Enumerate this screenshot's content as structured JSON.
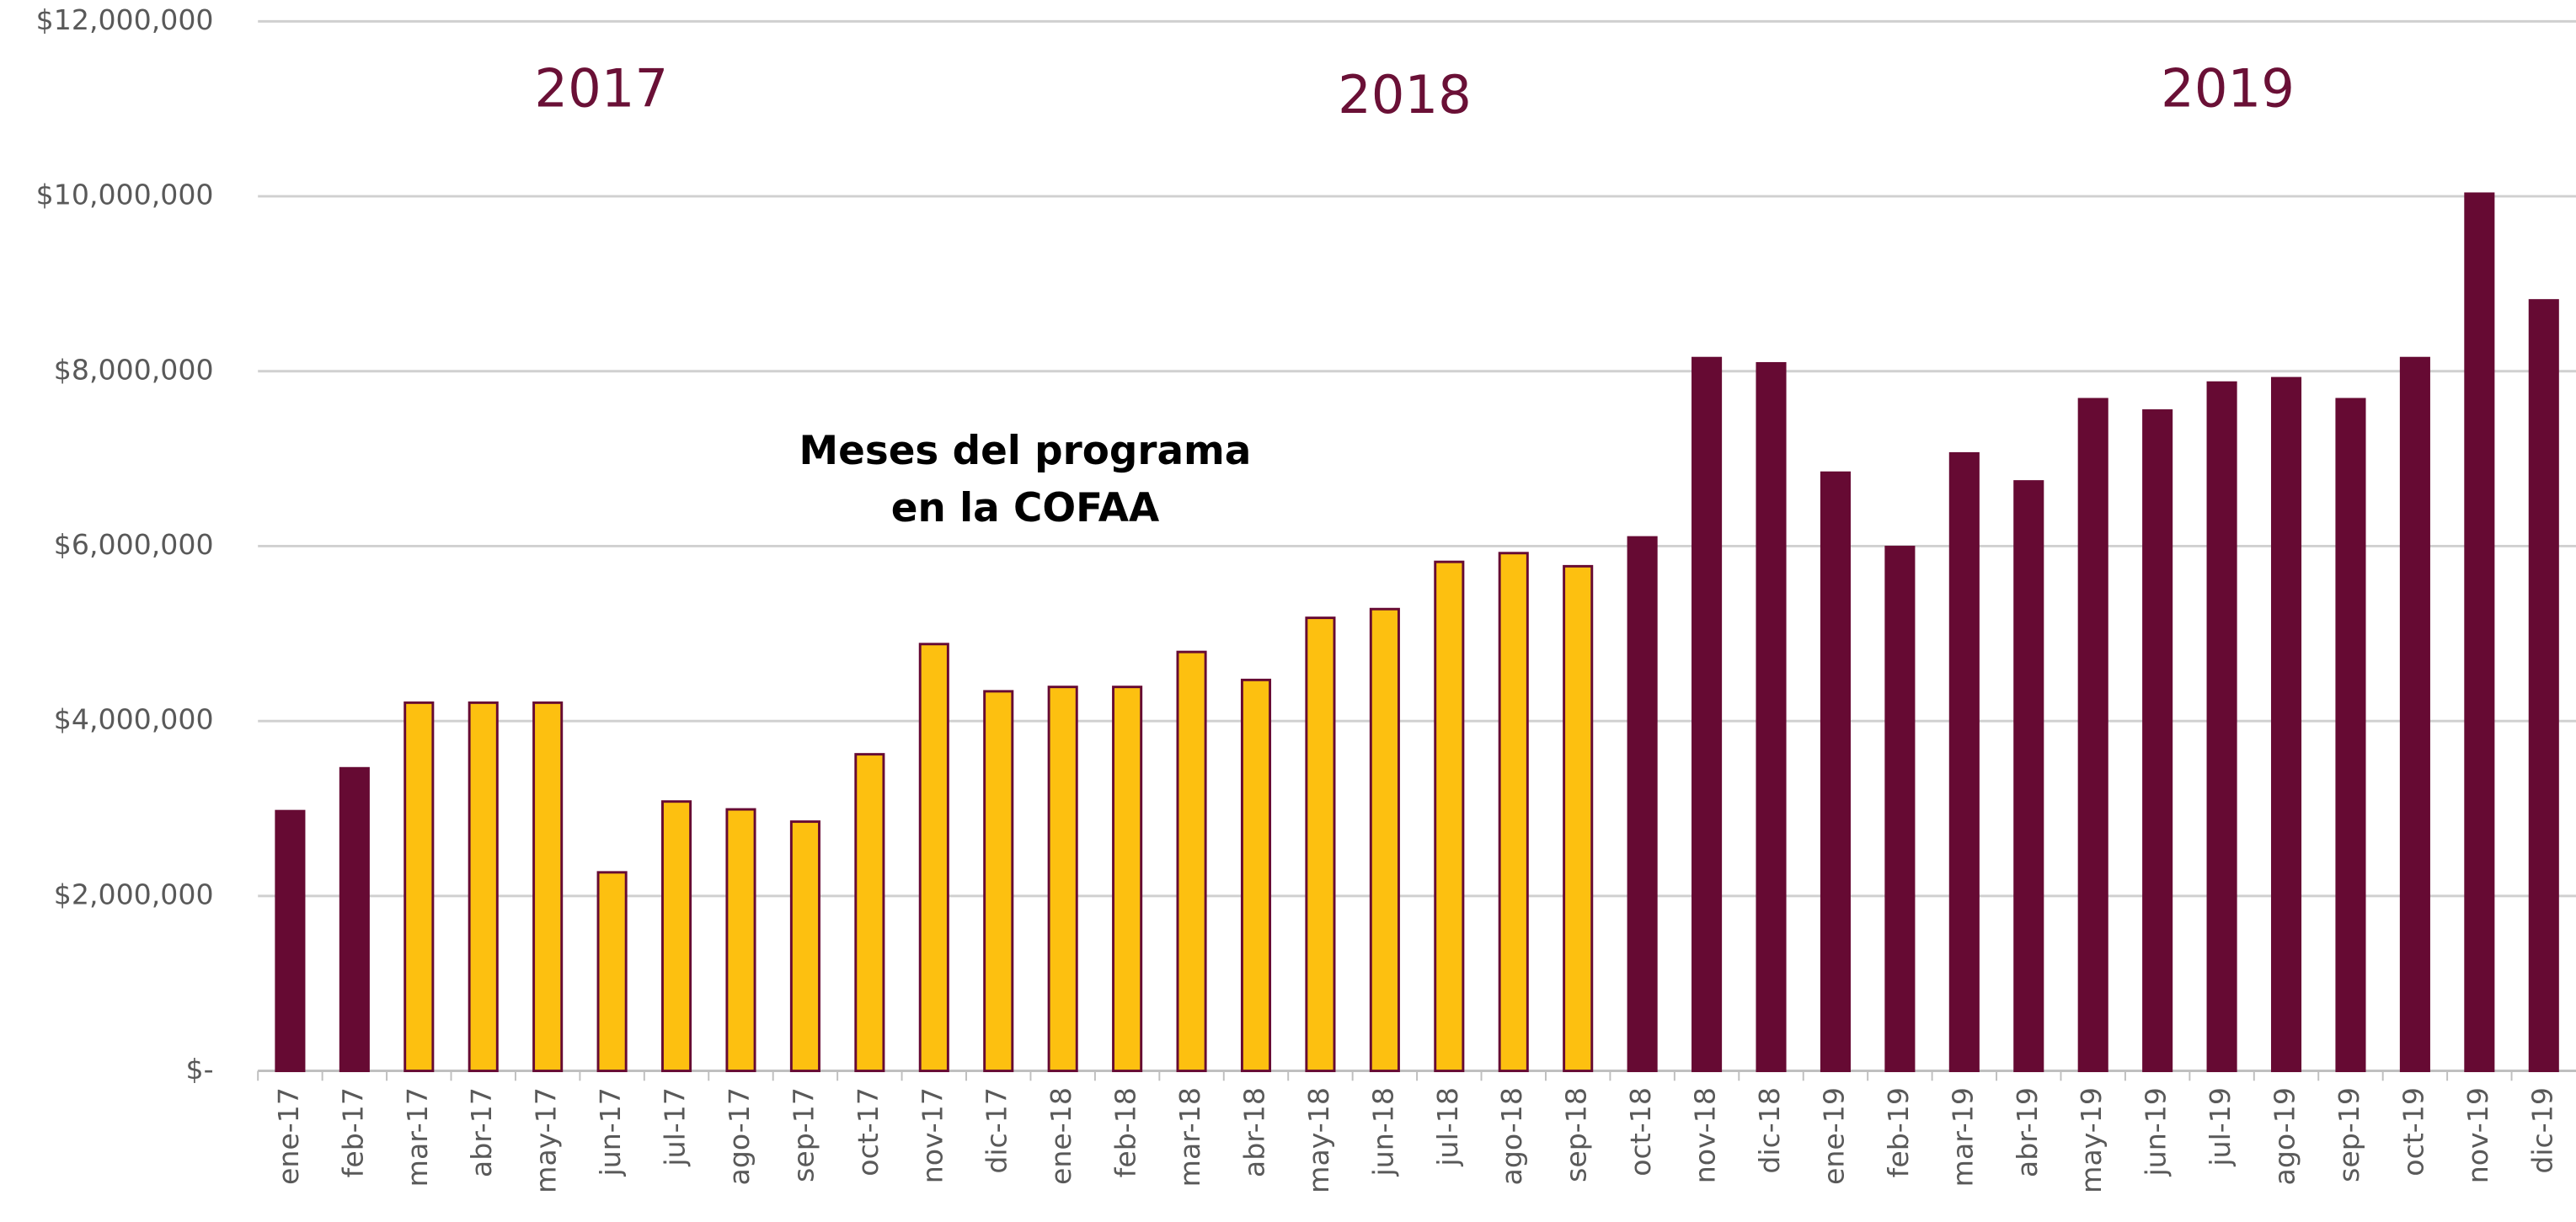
{
  "chart_data": {
    "type": "bar",
    "categories": [
      "ene-17",
      "feb-17",
      "mar-17",
      "abr-17",
      "may-17",
      "jun-17",
      "jul-17",
      "ago-17",
      "sep-17",
      "oct-17",
      "nov-17",
      "dic-17",
      "ene-18",
      "feb-18",
      "mar-18",
      "abr-18",
      "may-18",
      "jun-18",
      "jul-18",
      "ago-18",
      "sep-18",
      "oct-18",
      "nov-18",
      "dic-18",
      "ene-19",
      "feb-19",
      "mar-19",
      "abr-19",
      "may-19",
      "jun-19",
      "jul-19",
      "ago-19",
      "sep-19",
      "oct-19",
      "nov-19",
      "dic-19"
    ],
    "values": [
      2970000,
      3460000,
      4210000,
      4210000,
      4210000,
      2270000,
      3080000,
      2990000,
      2850000,
      3620000,
      4880000,
      4340000,
      4390000,
      4390000,
      4790000,
      4470000,
      5180000,
      5280000,
      5820000,
      5920000,
      5770000,
      6100000,
      8150000,
      8090000,
      6840000,
      5990000,
      7060000,
      6740000,
      7680000,
      7550000,
      7870000,
      7920000,
      7680000,
      8150000,
      10030000,
      8810000
    ],
    "colors": [
      "#660a33",
      "#660a33",
      "#fdc010",
      "#fdc010",
      "#fdc010",
      "#fdc010",
      "#fdc010",
      "#fdc010",
      "#fdc010",
      "#fdc010",
      "#fdc010",
      "#fdc010",
      "#fdc010",
      "#fdc010",
      "#fdc010",
      "#fdc010",
      "#fdc010",
      "#fdc010",
      "#fdc010",
      "#fdc010",
      "#fdc010",
      "#660a33",
      "#660a33",
      "#660a33",
      "#660a33",
      "#660a33",
      "#660a33",
      "#660a33",
      "#660a33",
      "#660a33",
      "#660a33",
      "#660a33",
      "#660a33",
      "#660a33",
      "#660a33",
      "#660a33"
    ],
    "edge_color": "#660a33",
    "ylim": [
      0,
      12000000
    ],
    "yticks": [
      {
        "value": 0,
        "label": "$-"
      },
      {
        "value": 2000000,
        "label": "$2,000,000"
      },
      {
        "value": 4000000,
        "label": "$4,000,000"
      },
      {
        "value": 6000000,
        "label": "$6,000,000"
      },
      {
        "value": 8000000,
        "label": "$8,000,000"
      },
      {
        "value": 10000000,
        "label": "$10,000,000"
      },
      {
        "value": 12000000,
        "label": "$12,000,000"
      }
    ],
    "grid": true,
    "annotations": [
      "2017",
      "2018",
      "2019"
    ],
    "note": [
      "Meses del programa",
      "en la COFAA"
    ]
  }
}
